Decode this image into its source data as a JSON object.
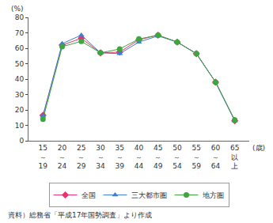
{
  "chart_data": {
    "type": "line",
    "y_label": "(%)",
    "x_label": "(歳)",
    "annotations": [
      "資料）総務省「平成17年国勢調査」より作成"
    ],
    "categories": [
      "15～19",
      "20～24",
      "25～29",
      "30～34",
      "35～39",
      "40～44",
      "45～49",
      "50～54",
      "55～59",
      "60～64",
      "65以上"
    ],
    "series": [
      {
        "name": "全国",
        "color": "#e8336e",
        "marker": "diamond",
        "values": [
          16.5,
          62,
          66.5,
          57,
          57.5,
          65.5,
          68.5,
          64,
          56.5,
          38,
          13
        ]
      },
      {
        "name": "三大都市圏",
        "color": "#3a7fd5",
        "marker": "triangle-up",
        "values": [
          16,
          63,
          68.5,
          57,
          56.5,
          64,
          68,
          64,
          56.5,
          38,
          13
        ]
      },
      {
        "name": "地方圏",
        "color": "#3aa83a",
        "marker": "circle",
        "values": [
          14,
          61,
          64.5,
          57,
          59.5,
          66,
          68.5,
          64,
          56.5,
          38,
          13.5
        ]
      }
    ],
    "ylim": [
      0,
      80
    ],
    "yticks": [
      0,
      10,
      20,
      30,
      40,
      50,
      60,
      70,
      80
    ],
    "grid": false,
    "legend": "bottom"
  }
}
